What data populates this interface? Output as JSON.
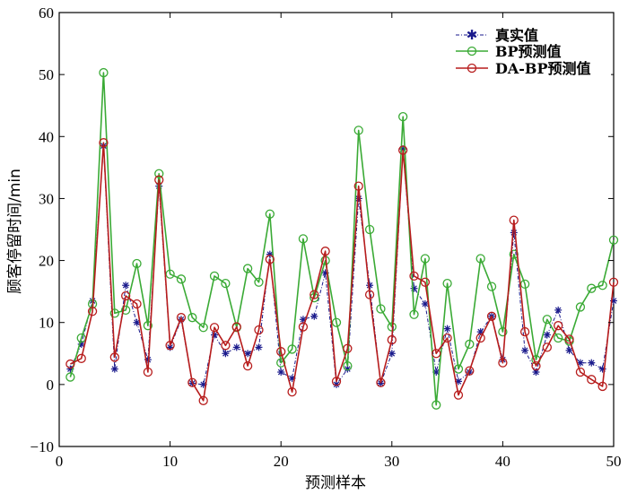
{
  "chart_data": {
    "type": "line",
    "xlabel": "预测样本",
    "ylabel": "顾客停留时间/min",
    "xlim": [
      0,
      50
    ],
    "ylim": [
      -10,
      60
    ],
    "xticks": [
      "0",
      "10",
      "20",
      "30",
      "40",
      "50"
    ],
    "yticks": [
      "−10",
      "0",
      "10",
      "20",
      "30",
      "40",
      "50",
      "60"
    ],
    "grid": false,
    "legend_position": "top-right",
    "x": [
      1,
      2,
      3,
      4,
      5,
      6,
      7,
      8,
      9,
      10,
      11,
      12,
      13,
      14,
      15,
      16,
      17,
      18,
      19,
      20,
      21,
      22,
      23,
      24,
      25,
      26,
      27,
      28,
      29,
      30,
      31,
      32,
      33,
      34,
      35,
      36,
      37,
      38,
      39,
      40,
      41,
      42,
      43,
      44,
      45,
      46,
      47,
      48,
      49,
      50
    ],
    "series": [
      {
        "name": "真实值",
        "color": "#1a1a8c",
        "marker": "star",
        "dash": "dashdot",
        "values": [
          2.5,
          6.5,
          13.5,
          38.5,
          2.5,
          16,
          10,
          4,
          32,
          6,
          10.5,
          0.2,
          0,
          8,
          5,
          6,
          5,
          6,
          21,
          2,
          1,
          10.5,
          11,
          18,
          0,
          2.5,
          30,
          16,
          0.2,
          5,
          38,
          15.5,
          13,
          2,
          9,
          0.5,
          2,
          8.5,
          11,
          4,
          24.5,
          5.5,
          2,
          8,
          12,
          5.5,
          3.5,
          3.5,
          2.5,
          13.5
        ]
      },
      {
        "name": "BP预测值",
        "color": "#3aaa35",
        "marker": "circle",
        "dash": "solid",
        "values": [
          1.2,
          7.5,
          13,
          50.3,
          11.5,
          12,
          19.5,
          9.5,
          34,
          17.8,
          17,
          10.8,
          9.2,
          17.5,
          16.3,
          9.2,
          18.7,
          16.5,
          27.5,
          3.5,
          5.7,
          23.5,
          14,
          20,
          10,
          3,
          41,
          25,
          12.2,
          9.3,
          43.2,
          11.3,
          20.3,
          -3.3,
          16.3,
          2.5,
          6.5,
          20.3,
          15.8,
          8.5,
          21,
          16.2,
          4,
          10.5,
          7.5,
          7,
          12.5,
          15.5,
          16,
          23.3
        ]
      },
      {
        "name": "DA-BP预测值",
        "color": "#b71c1c",
        "marker": "circle",
        "dash": "solid",
        "values": [
          3.3,
          4.2,
          11.8,
          39,
          4.4,
          14.3,
          13,
          2,
          33,
          6.3,
          10.8,
          0.3,
          -2.6,
          9.2,
          6.3,
          9.3,
          3,
          8.8,
          20.2,
          5.3,
          -1.2,
          9.3,
          14.5,
          21.5,
          0.5,
          5.8,
          32,
          14.5,
          0.3,
          7.2,
          37.8,
          17.5,
          16.5,
          5,
          7.5,
          -1.7,
          2.2,
          7.5,
          11,
          3.5,
          26.5,
          8.5,
          3,
          6,
          9.5,
          7.3,
          2,
          0.8,
          -0.3,
          16.5
        ]
      }
    ]
  }
}
